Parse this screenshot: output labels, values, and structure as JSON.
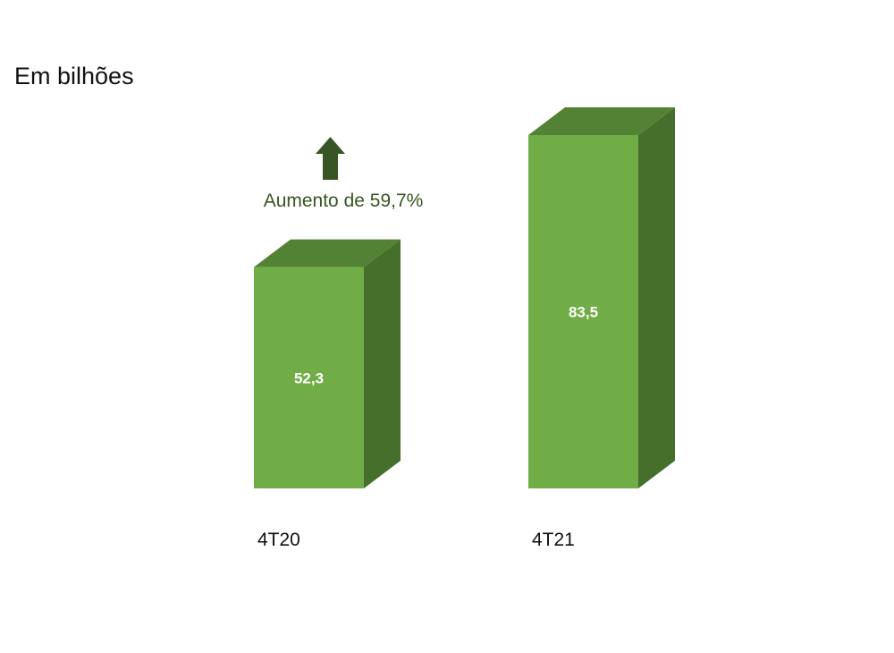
{
  "chart_data": {
    "type": "bar",
    "title": "Em bilhões",
    "categories": [
      "4T20",
      "4T21"
    ],
    "values": [
      52.3,
      83.5
    ],
    "value_labels": [
      "52,3",
      "83,5"
    ],
    "ylim": [
      0,
      83.5
    ],
    "grid": false,
    "legend": "none",
    "annotation": {
      "text": "Aumento de 59,7%",
      "icon": "up-arrow-icon"
    },
    "colors": {
      "bar_front": "#70AD47",
      "bar_top": "#548235",
      "bar_side": "#476F2C",
      "arrow": "#375623"
    }
  }
}
